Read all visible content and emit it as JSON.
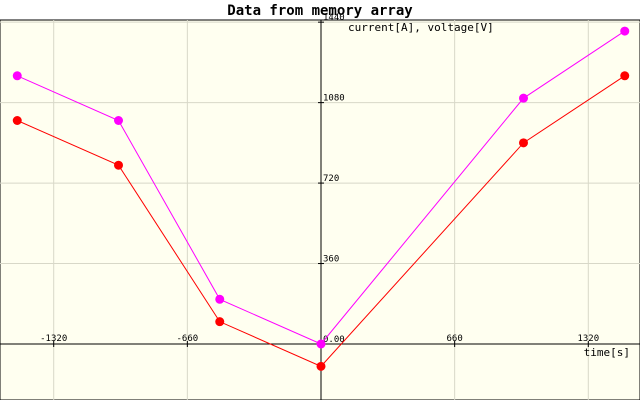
{
  "chart_data": {
    "type": "line",
    "title": "Data from memory array",
    "xlabel": "time[s]",
    "ylabel": "current[A], voltage[V]",
    "xlim": [
      -1540,
      1540
    ],
    "ylim": [
      -250,
      1450
    ],
    "x_ticks": [
      -1320,
      -660,
      0,
      660,
      1320
    ],
    "x_tick_labels": [
      "-1320",
      "-660",
      "0.00",
      "660",
      "1320"
    ],
    "y_ticks": [
      0,
      360,
      720,
      1080,
      1440
    ],
    "y_tick_labels": [
      "0.00",
      "360",
      "720",
      "1080",
      "1440"
    ],
    "grid": true,
    "x": [
      -1500,
      -1000,
      -500,
      0,
      1000,
      1500
    ],
    "series": [
      {
        "values": [
          1200,
          1000,
          200,
          0,
          1100,
          1400
        ],
        "color": "#ff00ff"
      },
      {
        "values": [
          1000,
          800,
          100,
          -100,
          900,
          1200
        ],
        "color": "#ff0000"
      }
    ]
  },
  "colors": {
    "plot_background": "#fffff0",
    "grid": "#d8d8c8",
    "axis": "#000000",
    "title_background": "#ffffff"
  }
}
